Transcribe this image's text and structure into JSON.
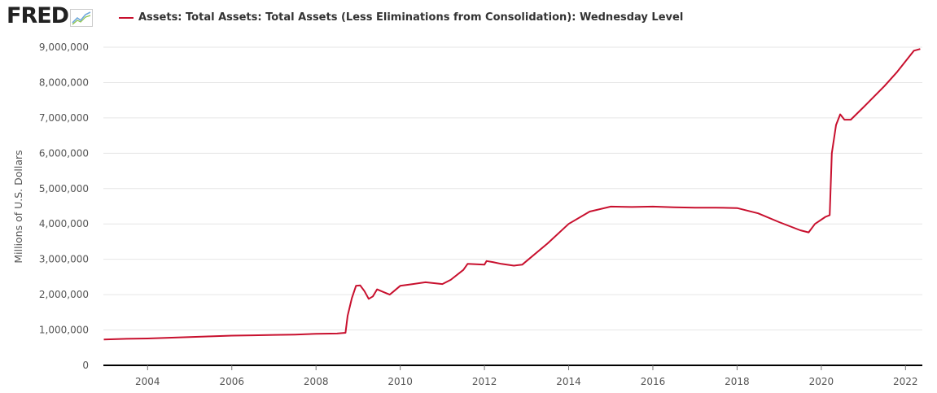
{
  "header": {
    "logo_text": "FRED",
    "logo_icon": "trend-line-icon",
    "legend_label": "Assets: Total Assets: Total Assets (Less Eliminations from Consolidation): Wednesday Level",
    "series_color": "#c8102e"
  },
  "chart_data": {
    "type": "line",
    "title": "",
    "xlabel": "",
    "ylabel": "Millions of U.S. Dollars",
    "xlim": [
      2002.95,
      2022.4
    ],
    "ylim": [
      0,
      9000000
    ],
    "grid": true,
    "legend_position": "top-left",
    "x_ticks": [
      2004,
      2006,
      2008,
      2010,
      2012,
      2014,
      2016,
      2018,
      2020,
      2022
    ],
    "x_tick_labels": [
      "2004",
      "2006",
      "2008",
      "2010",
      "2012",
      "2014",
      "2016",
      "2018",
      "2020",
      "2022"
    ],
    "y_ticks": [
      0,
      1000000,
      2000000,
      3000000,
      4000000,
      5000000,
      6000000,
      7000000,
      8000000,
      9000000
    ],
    "y_tick_labels": [
      "0",
      "1,000,000",
      "2,000,000",
      "3,000,000",
      "4,000,000",
      "5,000,000",
      "6,000,000",
      "7,000,000",
      "8,000,000",
      "9,000,000"
    ],
    "series": [
      {
        "name": "Assets: Total Assets: Total Assets (Less Eliminations from Consolidation): Wednesday Level",
        "color": "#c8102e",
        "points": [
          [
            2002.96,
            730000
          ],
          [
            2003.5,
            750000
          ],
          [
            2004.0,
            760000
          ],
          [
            2004.5,
            780000
          ],
          [
            2005.0,
            800000
          ],
          [
            2005.5,
            820000
          ],
          [
            2006.0,
            840000
          ],
          [
            2006.5,
            850000
          ],
          [
            2007.0,
            860000
          ],
          [
            2007.5,
            870000
          ],
          [
            2008.0,
            890000
          ],
          [
            2008.5,
            900000
          ],
          [
            2008.7,
            920000
          ],
          [
            2008.75,
            1400000
          ],
          [
            2008.85,
            1900000
          ],
          [
            2008.95,
            2250000
          ],
          [
            2009.05,
            2260000
          ],
          [
            2009.15,
            2100000
          ],
          [
            2009.25,
            1880000
          ],
          [
            2009.35,
            1950000
          ],
          [
            2009.45,
            2150000
          ],
          [
            2009.55,
            2100000
          ],
          [
            2009.65,
            2050000
          ],
          [
            2009.75,
            2000000
          ],
          [
            2009.85,
            2100000
          ],
          [
            2010.0,
            2250000
          ],
          [
            2010.3,
            2300000
          ],
          [
            2010.6,
            2350000
          ],
          [
            2011.0,
            2300000
          ],
          [
            2011.2,
            2420000
          ],
          [
            2011.5,
            2700000
          ],
          [
            2011.6,
            2870000
          ],
          [
            2012.0,
            2850000
          ],
          [
            2012.05,
            2950000
          ],
          [
            2012.2,
            2920000
          ],
          [
            2012.4,
            2870000
          ],
          [
            2012.7,
            2820000
          ],
          [
            2012.9,
            2850000
          ],
          [
            2013.0,
            2950000
          ],
          [
            2013.5,
            3450000
          ],
          [
            2014.0,
            4000000
          ],
          [
            2014.5,
            4350000
          ],
          [
            2015.0,
            4490000
          ],
          [
            2015.5,
            4480000
          ],
          [
            2016.0,
            4490000
          ],
          [
            2016.5,
            4470000
          ],
          [
            2017.0,
            4460000
          ],
          [
            2017.5,
            4460000
          ],
          [
            2018.0,
            4450000
          ],
          [
            2018.5,
            4300000
          ],
          [
            2019.0,
            4050000
          ],
          [
            2019.5,
            3820000
          ],
          [
            2019.7,
            3760000
          ],
          [
            2019.85,
            4000000
          ],
          [
            2020.1,
            4200000
          ],
          [
            2020.2,
            4250000
          ],
          [
            2020.25,
            6000000
          ],
          [
            2020.35,
            6800000
          ],
          [
            2020.45,
            7100000
          ],
          [
            2020.55,
            6950000
          ],
          [
            2020.7,
            6950000
          ],
          [
            2021.0,
            7300000
          ],
          [
            2021.5,
            7900000
          ],
          [
            2021.8,
            8300000
          ],
          [
            2022.0,
            8600000
          ],
          [
            2022.2,
            8900000
          ],
          [
            2022.35,
            8950000
          ]
        ]
      }
    ]
  }
}
